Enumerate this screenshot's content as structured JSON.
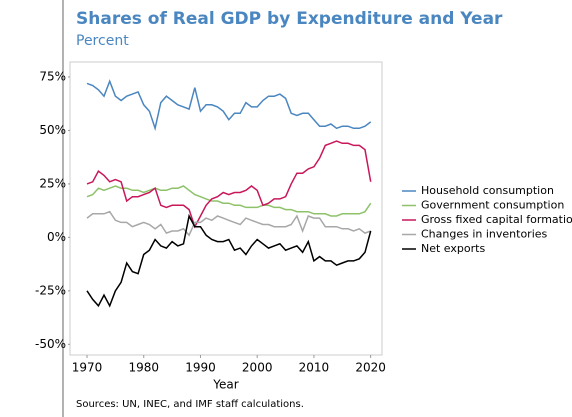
{
  "chart_data": {
    "type": "line",
    "title": "Shares of Real GDP by Expenditure and Year",
    "subtitle": "Percent",
    "x_label": "Year",
    "source": "Sources: UN, INEC, and IMF staff calculations.",
    "legend": "right",
    "xlim": [
      1967,
      2022
    ],
    "xticks": [
      1970,
      1980,
      1990,
      2000,
      2010,
      2020
    ],
    "ylim": [
      -55,
      82
    ],
    "yticks": [
      {
        "value": -50,
        "label": "-50%"
      },
      {
        "value": -25,
        "label": "-25%"
      },
      {
        "value": 0,
        "label": "0%"
      },
      {
        "value": 25,
        "label": "25%"
      },
      {
        "value": 50,
        "label": "50%"
      },
      {
        "value": 75,
        "label": "75%"
      }
    ],
    "x": [
      1970,
      1971,
      1972,
      1973,
      1974,
      1975,
      1976,
      1977,
      1978,
      1979,
      1980,
      1981,
      1982,
      1983,
      1984,
      1985,
      1986,
      1987,
      1988,
      1989,
      1990,
      1991,
      1992,
      1993,
      1994,
      1995,
      1996,
      1997,
      1998,
      1999,
      2000,
      2001,
      2002,
      2003,
      2004,
      2005,
      2006,
      2007,
      2008,
      2009,
      2010,
      2011,
      2012,
      2013,
      2014,
      2015,
      2016,
      2017,
      2018,
      2019,
      2020
    ],
    "series": [
      {
        "name": "Household consumption",
        "color": "#4a86c0",
        "values": [
          72,
          71,
          69,
          66,
          73,
          66,
          64,
          66,
          67,
          68,
          62,
          59,
          51,
          63,
          66,
          64,
          62,
          61,
          60,
          70,
          59,
          62,
          62,
          61,
          59,
          55,
          58,
          58,
          63,
          61,
          61,
          64,
          66,
          66,
          67,
          65,
          58,
          57,
          58,
          58,
          55,
          52,
          52,
          53,
          51,
          52,
          52,
          51,
          51,
          52,
          54
        ]
      },
      {
        "name": "Government consumption",
        "color": "#8dc26a",
        "values": [
          19,
          20,
          23,
          22,
          23,
          24,
          23,
          23,
          22,
          22,
          21,
          22,
          23,
          22,
          22,
          23,
          23,
          24,
          22,
          20,
          19,
          18,
          17,
          17,
          16,
          16,
          15,
          15,
          14,
          14,
          14,
          15,
          15,
          14,
          14,
          13,
          13,
          12,
          12,
          12,
          11,
          11,
          11,
          10,
          10,
          11,
          11,
          11,
          11,
          12,
          16
        ]
      },
      {
        "name": "Gross fixed capital formation",
        "color": "#c8175a",
        "values": [
          25,
          26,
          31,
          29,
          26,
          27,
          26,
          17,
          19,
          19,
          20,
          21,
          23,
          15,
          14,
          15,
          15,
          15,
          13,
          5,
          10,
          15,
          18,
          19,
          21,
          20,
          21,
          21,
          22,
          24,
          22,
          15,
          16,
          18,
          18,
          19,
          25,
          30,
          30,
          32,
          33,
          37,
          43,
          44,
          45,
          44,
          44,
          43,
          43,
          41,
          26
        ]
      },
      {
        "name": "Changes in inventories",
        "color": "#a8a8a8",
        "values": [
          9,
          11,
          11,
          11,
          12,
          8,
          7,
          7,
          5,
          6,
          7,
          6,
          4,
          6,
          2,
          3,
          3,
          4,
          1,
          7,
          7,
          9,
          8,
          10,
          9,
          8,
          7,
          6,
          9,
          8,
          7,
          6,
          6,
          5,
          5,
          5,
          6,
          10,
          3,
          10,
          9,
          9,
          5,
          5,
          5,
          4,
          4,
          3,
          4,
          2,
          3
        ]
      },
      {
        "name": "Net exports",
        "color": "#000000",
        "values": [
          -25,
          -29,
          -32,
          -27,
          -32,
          -25,
          -21,
          -12,
          -16,
          -17,
          -8,
          -6,
          -1,
          -4,
          -5,
          -2,
          -4,
          -3,
          10,
          5,
          5,
          1,
          -1,
          -2,
          -2,
          -1,
          -6,
          -5,
          -8,
          -4,
          -1,
          -3,
          -5,
          -4,
          -3,
          -6,
          -5,
          -4,
          -7,
          -2,
          -11,
          -9,
          -11,
          -11,
          -13,
          -12,
          -11,
          -11,
          -10,
          -7,
          3
        ]
      }
    ]
  }
}
